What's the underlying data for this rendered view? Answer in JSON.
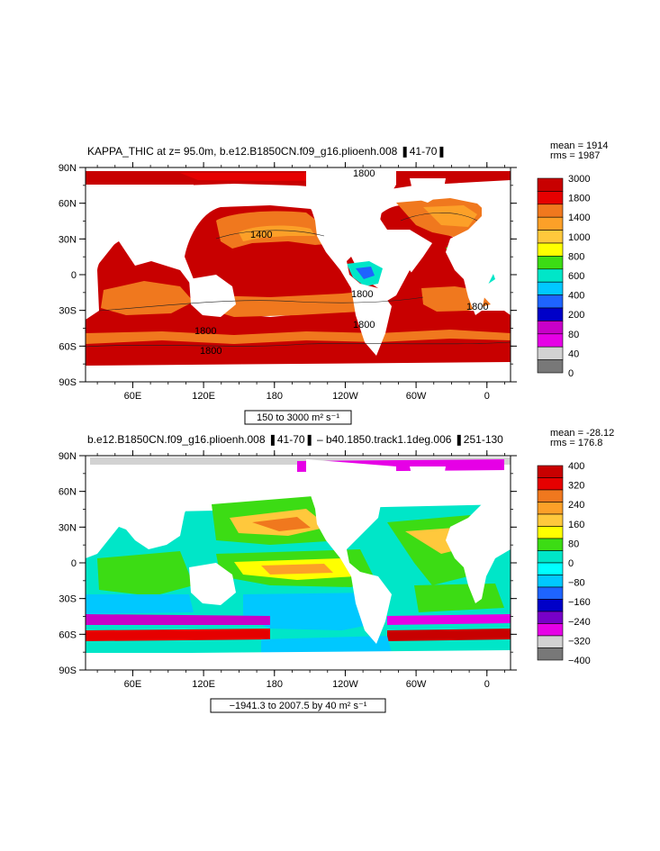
{
  "chart_data": [
    {
      "type": "heatmap",
      "title": "KAPPA_THIC at z=  95.0m, b.e12.B1850CN.f09_g16.plioenh.008 ❚41-70❚",
      "stats": {
        "mean": "mean = 1914",
        "rms": "rms = 1987"
      },
      "x_ticks": [
        "60E",
        "120E",
        "180",
        "120W",
        "60W",
        "0"
      ],
      "y_ticks": [
        "90N",
        "60N",
        "30N",
        "0",
        "30S",
        "60S",
        "90S"
      ],
      "range_label": "150 to 3000 m² s⁻¹",
      "contour_labels": [
        "1800",
        "1400",
        "1800",
        "1800",
        "1800",
        "1800",
        "1800"
      ],
      "colorbar": {
        "levels": [
          "3000",
          "1800",
          "1400",
          "1000",
          "800",
          "600",
          "400",
          "200",
          "80",
          "40",
          "0"
        ],
        "colors": [
          "#c80000",
          "#e60000",
          "#f0781e",
          "#fca028",
          "#ffc83c",
          "#ffff00",
          "#3cdc14",
          "#00e6c8",
          "#00c8ff",
          "#1e64ff",
          "#0000c8",
          "#c800c8",
          "#e600e6",
          "#d2d2d2",
          "#787878"
        ]
      }
    },
    {
      "type": "heatmap",
      "title": "b.e12.B1850CN.f09_g16.plioenh.008 ❚41-70❚  –  b40.1850.track1.1deg.006 ❚251-130",
      "stats": {
        "mean": "mean = -28.12",
        "rms": "rms = 176.8"
      },
      "x_ticks": [
        "60E",
        "120E",
        "180",
        "120W",
        "60W",
        "0"
      ],
      "y_ticks": [
        "90N",
        "60N",
        "30N",
        "0",
        "30S",
        "60S",
        "90S"
      ],
      "range_label": "−1941.3 to 2007.5 by 40 m² s⁻¹",
      "colorbar": {
        "levels": [
          "400",
          "320",
          "240",
          "160",
          "80",
          "0",
          "−80",
          "−160",
          "−240",
          "−320",
          "−400"
        ],
        "colors": [
          "#c80000",
          "#e60000",
          "#f0781e",
          "#fca028",
          "#ffc83c",
          "#ffff00",
          "#3cdc14",
          "#00e6c8",
          "#00ffff",
          "#00c8ff",
          "#1e64ff",
          "#0000c8",
          "#7800c8",
          "#e600e6",
          "#d2d2d2",
          "#787878"
        ]
      }
    }
  ]
}
